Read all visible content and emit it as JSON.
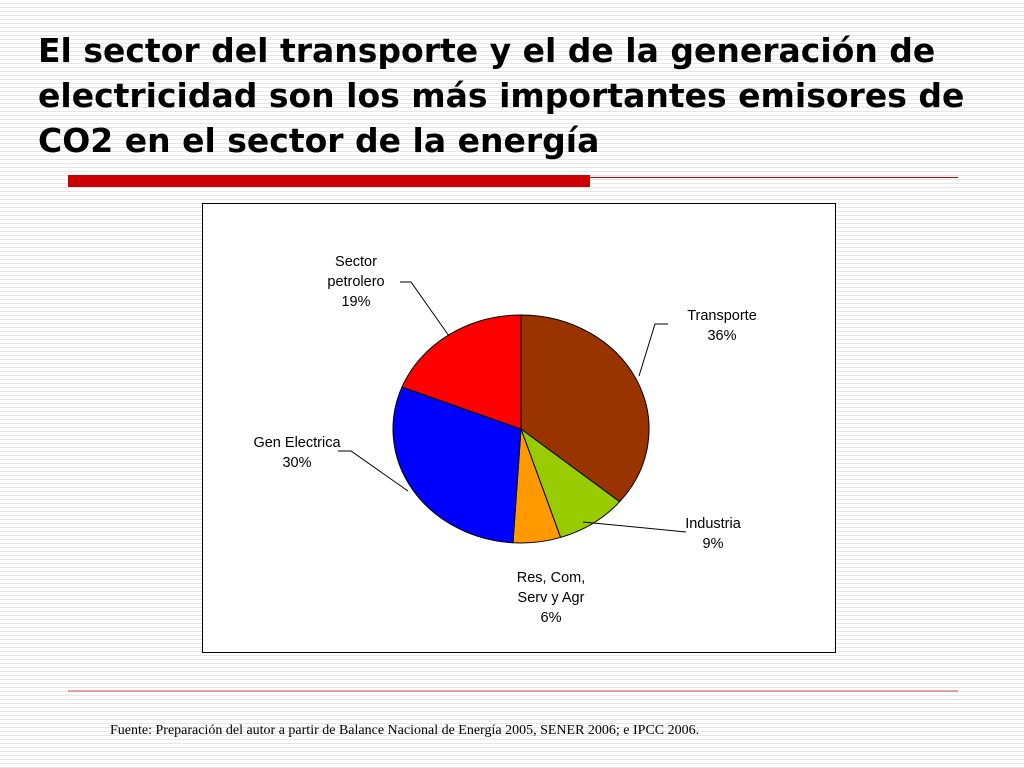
{
  "slide": {
    "title": "El sector del transporte y el de la generación de electricidad son los más importantes emisores de CO2 en el sector de la energía",
    "source": "Fuente: Preparación del autor a partir de Balance Nacional de Energía 2005, SENER 2006; e IPCC 2006."
  },
  "chart_data": {
    "type": "pie",
    "title": "",
    "slices": [
      {
        "label_lines": [
          "Transporte",
          "36%"
        ],
        "value": 36,
        "color": "#993300"
      },
      {
        "label_lines": [
          "Industria",
          "9%"
        ],
        "value": 9,
        "color": "#99cc00"
      },
      {
        "label_lines": [
          "Res, Com,",
          "Serv y Agr",
          "6%"
        ],
        "value": 6,
        "color": "#ff9900"
      },
      {
        "label_lines": [
          "Gen Electrica",
          "30%"
        ],
        "value": 30,
        "color": "#0000ff"
      },
      {
        "label_lines": [
          "Sector",
          "petrolero",
          "19%"
        ],
        "value": 19,
        "color": "#ff0000"
      }
    ],
    "start_angle": "12 o'clock",
    "direction": "clockwise",
    "legend": "none",
    "data_labels": "outside with leader lines"
  }
}
